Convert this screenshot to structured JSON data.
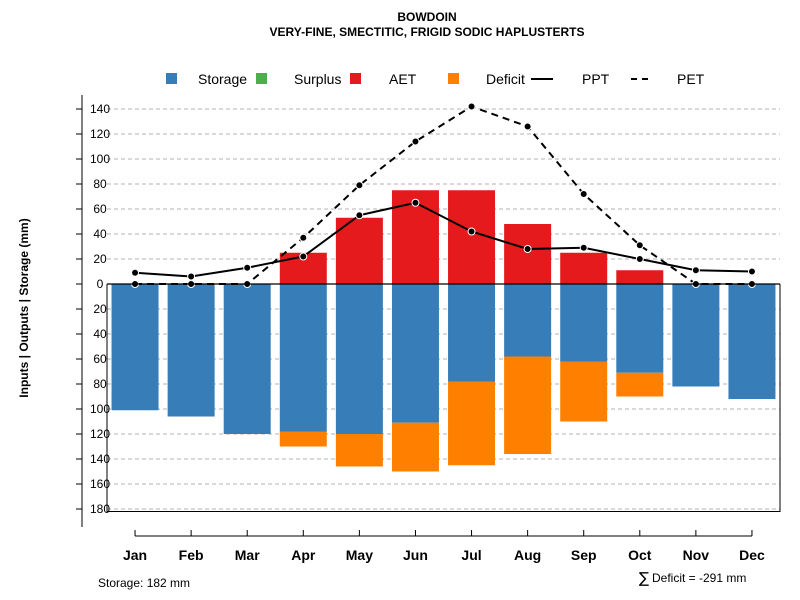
{
  "chart_data": {
    "type": "bar",
    "title": "BOWDOIN",
    "subtitle": "VERY-FINE, SMECTITIC, FRIGID SODIC HAPLUSTERTS",
    "ylabel": "Inputs | Outputs | Storage    (mm)",
    "categories": [
      "Jan",
      "Feb",
      "Mar",
      "Apr",
      "May",
      "Jun",
      "Jul",
      "Aug",
      "Sep",
      "Oct",
      "Nov",
      "Dec"
    ],
    "ylim": [
      -182,
      150
    ],
    "yticks": [
      140,
      120,
      100,
      80,
      60,
      40,
      20,
      0,
      -20,
      -40,
      -60,
      -80,
      -100,
      -120,
      -140,
      -160,
      -180
    ],
    "ytick_labels": [
      "140",
      "120",
      "100",
      "80",
      "60",
      "40",
      "20",
      "0",
      "20",
      "40",
      "60",
      "80",
      "100",
      "120",
      "140",
      "160",
      "180"
    ],
    "grid": true,
    "legend_position": "top",
    "legend": [
      {
        "label": "Storage",
        "kind": "box",
        "color": "#377EB8"
      },
      {
        "label": "Surplus",
        "kind": "box",
        "color": "#4DAF4A"
      },
      {
        "label": "AET",
        "kind": "box",
        "color": "#E41A1C"
      },
      {
        "label": "Deficit",
        "kind": "box",
        "color": "#FF7F00"
      },
      {
        "label": "PPT",
        "kind": "solid-line",
        "color": "#000000"
      },
      {
        "label": "PET",
        "kind": "dashed-line",
        "color": "#000000"
      }
    ],
    "series": [
      {
        "name": "Storage",
        "color": "#377EB8",
        "values": [
          -101,
          -106,
          -120,
          -118,
          -120,
          -111,
          -78,
          -58,
          -62,
          -71,
          -82,
          -92
        ]
      },
      {
        "name": "Surplus",
        "color": "#4DAF4A",
        "values": [
          0,
          0,
          0,
          0,
          0,
          0,
          0,
          0,
          0,
          0,
          0,
          0
        ]
      },
      {
        "name": "AET",
        "color": "#E41A1C",
        "values": [
          0,
          0,
          0,
          25,
          53,
          75,
          75,
          48,
          25,
          11,
          0,
          0
        ]
      },
      {
        "name": "Deficit",
        "color": "#FF7F00",
        "values": [
          0,
          0,
          0,
          -12,
          -26,
          -39,
          -67,
          -78,
          -48,
          -19,
          0,
          0
        ]
      },
      {
        "name": "PPT",
        "color": "#000000",
        "values": [
          9,
          6,
          13,
          22,
          55,
          65,
          42,
          28,
          29,
          20,
          11,
          10
        ]
      },
      {
        "name": "PET",
        "color": "#000000",
        "values": [
          0,
          0,
          0,
          37,
          79,
          114,
          142,
          126,
          72,
          31,
          0,
          0
        ]
      }
    ],
    "annotations": {
      "storage": "Storage: 182 mm",
      "deficit_symbol": "∑",
      "deficit": "Deficit = -291 mm"
    }
  }
}
